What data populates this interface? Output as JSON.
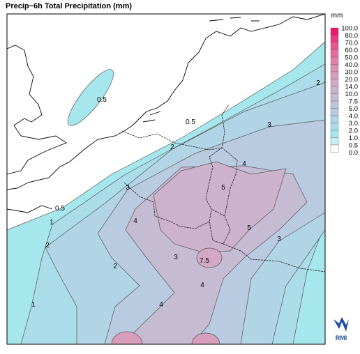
{
  "title": "Precip−6h Total Precipitation (mm)",
  "legend": {
    "unit": "mm",
    "labels": [
      "100.0",
      "80.0",
      "70.0",
      "60.0",
      "50.0",
      "40.0",
      "30.0",
      "20.0",
      "14.0",
      "10.0",
      "7.5",
      "5.0",
      "4.0",
      "3.0",
      "2.0",
      "1.0",
      "0.5",
      "0.0"
    ],
    "colors": [
      "#e8196b",
      "#ea3a7e",
      "#e9558f",
      "#e66a9c",
      "#e27ea8",
      "#dc8fb4",
      "#d79dbd",
      "#d2a8c6",
      "#ccb2cc",
      "#c5bbd3",
      "#bec3da",
      "#b8cbe0",
      "#b1d4e6",
      "#aadde9",
      "#a6e6ed",
      "#c6f1f4",
      "#ffffff"
    ]
  },
  "contour_labels": [
    "0.5",
    "0.5",
    "0.5",
    "1",
    "1",
    "2",
    "2",
    "2",
    "2",
    "3",
    "3",
    "3",
    "3",
    "4",
    "4",
    "4",
    "4",
    "5",
    "5",
    "7.5"
  ],
  "logo": "RMI"
}
